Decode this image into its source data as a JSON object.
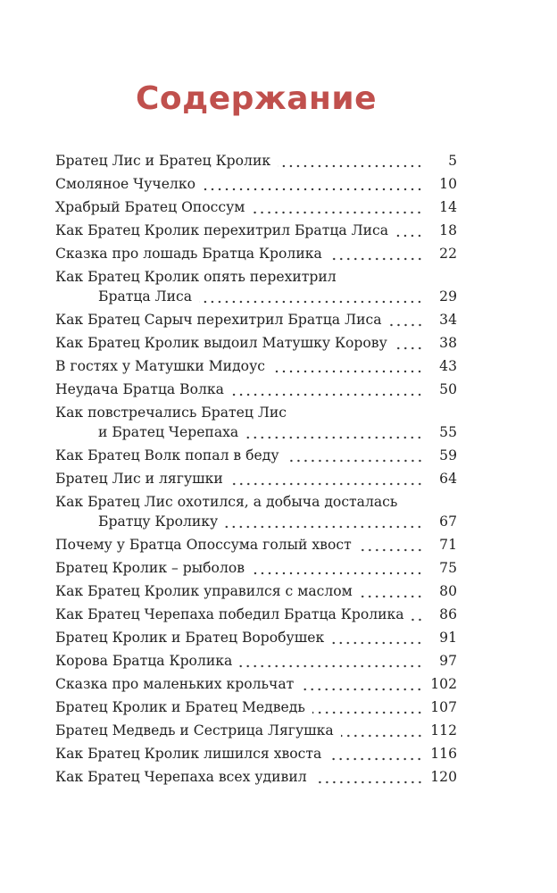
{
  "title": "Содержание",
  "entries": [
    {
      "lines": [
        "Братец Лис и Братец Кролик"
      ],
      "page": "5"
    },
    {
      "lines": [
        "Смоляное Чучелко"
      ],
      "page": "10"
    },
    {
      "lines": [
        "Храбрый Братец Опоссум"
      ],
      "page": "14"
    },
    {
      "lines": [
        "Как Братец Кролик перехитрил Братца Лиса"
      ],
      "page": "18"
    },
    {
      "lines": [
        "Сказка про лошадь Братца Кролика"
      ],
      "page": "22"
    },
    {
      "lines": [
        "Как Братец Кролик опять перехитрил",
        "Братца Лиса"
      ],
      "page": "29"
    },
    {
      "lines": [
        "Как Братец Сарыч перехитрил Братца Лиса"
      ],
      "page": "34"
    },
    {
      "lines": [
        "Как Братец Кролик выдоил Матушку Корову"
      ],
      "page": "38"
    },
    {
      "lines": [
        "В гостях у Матушки Мидоус"
      ],
      "page": "43"
    },
    {
      "lines": [
        "Неудача Братца Волка"
      ],
      "page": "50"
    },
    {
      "lines": [
        "Как повстречались Братец Лис",
        "и Братец Черепаха"
      ],
      "page": "55"
    },
    {
      "lines": [
        "Как Братец Волк попал в беду"
      ],
      "page": "59"
    },
    {
      "lines": [
        "Братец Лис и лягушки"
      ],
      "page": "64"
    },
    {
      "lines": [
        "Как Братец Лис охотился, а добыча досталась",
        "Братцу Кролику"
      ],
      "page": "67"
    },
    {
      "lines": [
        "Почему у Братца Опоссума голый хвост"
      ],
      "page": "71"
    },
    {
      "lines": [
        "Братец Кролик – рыболов"
      ],
      "page": "75"
    },
    {
      "lines": [
        "Как Братец Кролик управился с маслом"
      ],
      "page": "80"
    },
    {
      "lines": [
        "Как Братец Черепаха победил Братца Кролика"
      ],
      "page": "86"
    },
    {
      "lines": [
        "Братец Кролик и Братец Воробушек"
      ],
      "page": "91"
    },
    {
      "lines": [
        "Корова Братца Кролика"
      ],
      "page": "97"
    },
    {
      "lines": [
        "Сказка про маленьких крольчат"
      ],
      "page": "102"
    },
    {
      "lines": [
        "Братец Кролик и Братец Медведь"
      ],
      "page": "107"
    },
    {
      "lines": [
        "Братец Медведь и Сестрица Лягушка"
      ],
      "page": "112"
    },
    {
      "lines": [
        "Как Братец Кролик лишился хвоста"
      ],
      "page": "116"
    },
    {
      "lines": [
        "Как Братец Черепаха всех удивил"
      ],
      "page": "120"
    }
  ],
  "colors": {
    "title": "#c0504d",
    "text": "#222222"
  }
}
